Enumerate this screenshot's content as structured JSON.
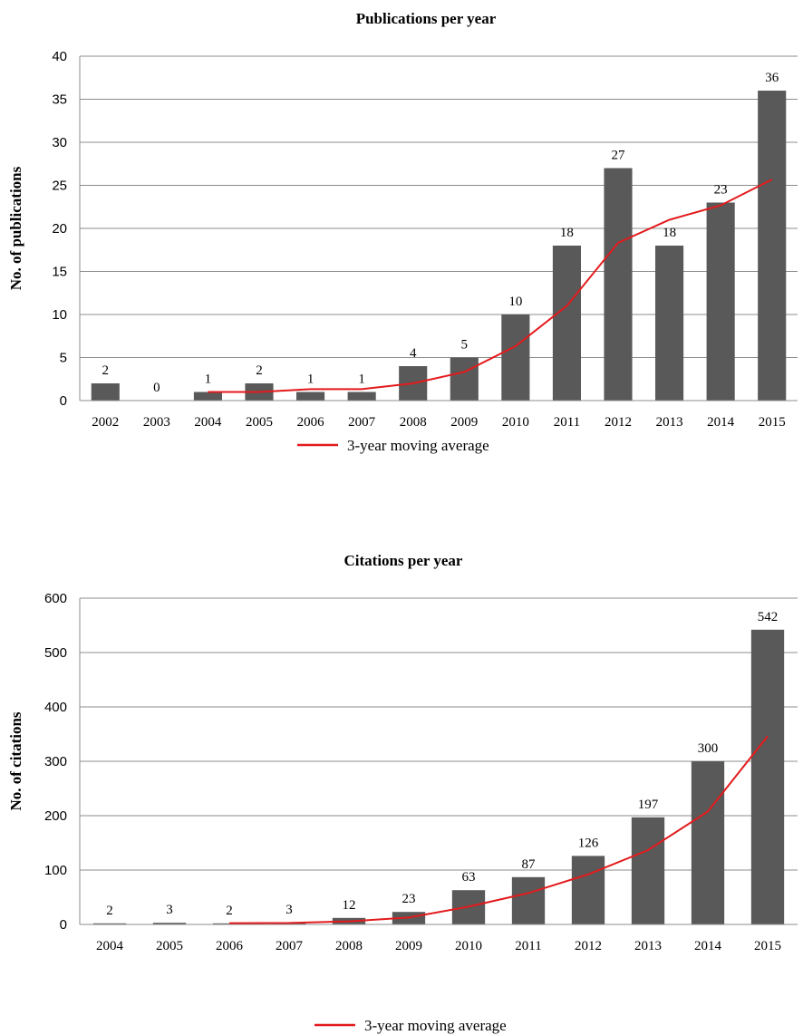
{
  "chart_data": [
    {
      "type": "bar",
      "title": "Publications per year",
      "xlabel": "",
      "ylabel": "No. of publications",
      "ylim": [
        0,
        40
      ],
      "yticks": [
        0,
        5,
        10,
        15,
        20,
        25,
        30,
        35,
        40
      ],
      "grid": true,
      "legend_position": "bottom",
      "categories": [
        "2002",
        "2003",
        "2004",
        "2005",
        "2006",
        "2007",
        "2008",
        "2009",
        "2010",
        "2011",
        "2012",
        "2013",
        "2014",
        "2015"
      ],
      "series": [
        {
          "type": "bar",
          "color": "#595959",
          "values": [
            2,
            0,
            1,
            2,
            1,
            1,
            4,
            5,
            10,
            18,
            27,
            18,
            23,
            36
          ]
        },
        {
          "type": "line",
          "name": "3-year moving average",
          "color": "#e31a1c",
          "values": [
            null,
            null,
            1,
            1,
            1.33,
            1.33,
            2,
            3.33,
            6.33,
            11,
            18.33,
            21,
            22.67,
            25.67
          ]
        }
      ]
    },
    {
      "type": "bar",
      "title": "Citations per year",
      "xlabel": "",
      "ylabel": "No. of citations",
      "ylim": [
        0,
        600
      ],
      "yticks": [
        0,
        100,
        200,
        300,
        400,
        500,
        600
      ],
      "grid": true,
      "legend_position": "bottom",
      "categories": [
        "2004",
        "2005",
        "2006",
        "2007",
        "2008",
        "2009",
        "2010",
        "2011",
        "2012",
        "2013",
        "2014",
        "2015"
      ],
      "series": [
        {
          "type": "bar",
          "color": "#595959",
          "values": [
            2,
            3,
            2,
            3,
            12,
            23,
            63,
            87,
            126,
            197,
            300,
            542
          ]
        },
        {
          "type": "line",
          "name": "3-year moving average",
          "color": "#e31a1c",
          "values": [
            null,
            null,
            2.33,
            2.67,
            5.67,
            12.67,
            32.67,
            57.67,
            92,
            136.67,
            207.67,
            346.33
          ]
        }
      ]
    }
  ]
}
